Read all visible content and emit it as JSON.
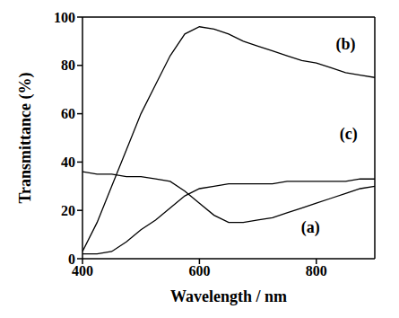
{
  "chart_data": {
    "type": "line",
    "x_label": "Wavelength / nm",
    "y_label": "Transmittance (%)",
    "x": [
      400,
      425,
      450,
      475,
      500,
      525,
      550,
      575,
      600,
      625,
      650,
      675,
      700,
      725,
      750,
      775,
      800,
      825,
      850,
      875,
      900
    ],
    "series": [
      {
        "name": "(a)",
        "color": "#000000",
        "values": [
          36,
          35,
          35,
          34,
          34,
          33,
          32,
          28,
          23,
          18,
          15,
          15,
          16,
          17,
          19,
          21,
          23,
          25,
          27,
          29,
          30
        ]
      },
      {
        "name": "(b)",
        "color": "#000000",
        "values": [
          3,
          15,
          30,
          45,
          60,
          72,
          84,
          93,
          96,
          95,
          93,
          90,
          88,
          86,
          84,
          82,
          81,
          79,
          77,
          76,
          75
        ]
      },
      {
        "name": "(c)",
        "color": "#000000",
        "values": [
          2,
          2,
          3,
          7,
          12,
          16,
          21,
          26,
          29,
          30,
          31,
          31,
          31,
          31,
          32,
          32,
          32,
          32,
          32,
          33,
          33
        ]
      }
    ],
    "annotations": [
      {
        "text": "(a)",
        "x": 790,
        "y": 13
      },
      {
        "text": "(b)",
        "x": 850,
        "y": 89
      },
      {
        "text": "(c)",
        "x": 855,
        "y": 52
      }
    ],
    "xlim": [
      400,
      900
    ],
    "ylim": [
      0,
      100
    ],
    "xticks": [
      400,
      600,
      800
    ],
    "yticks": [
      0,
      20,
      40,
      60,
      80,
      100
    ],
    "grid": false
  }
}
